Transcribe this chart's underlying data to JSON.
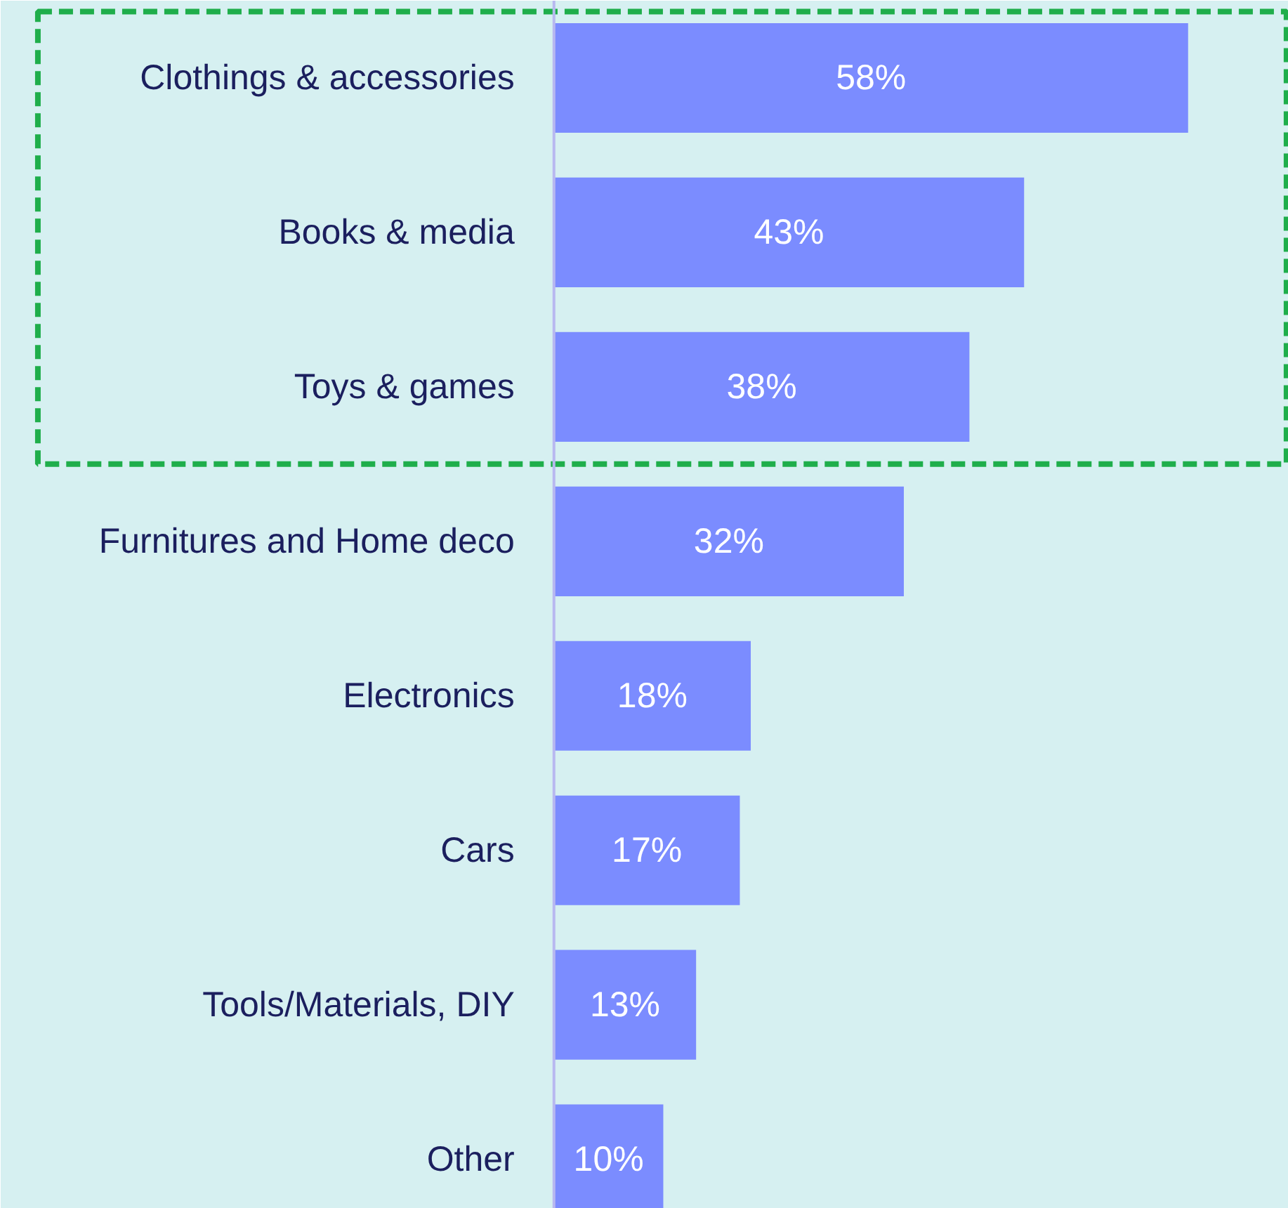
{
  "chart_data": {
    "type": "bar",
    "orientation": "horizontal",
    "categories": [
      "Clothings & accessories",
      "Books & media",
      "Toys & games",
      "Furnitures and Home deco",
      "Electronics",
      "Cars",
      "Tools/Materials, DIY",
      "Other"
    ],
    "values": [
      58,
      43,
      38,
      32,
      18,
      17,
      13,
      10
    ],
    "color": "#7b8cff",
    "value_labels": [
      "58%",
      "43%",
      "38%",
      "32%",
      "18%",
      "17%",
      "13%",
      "10%"
    ]
  }
}
